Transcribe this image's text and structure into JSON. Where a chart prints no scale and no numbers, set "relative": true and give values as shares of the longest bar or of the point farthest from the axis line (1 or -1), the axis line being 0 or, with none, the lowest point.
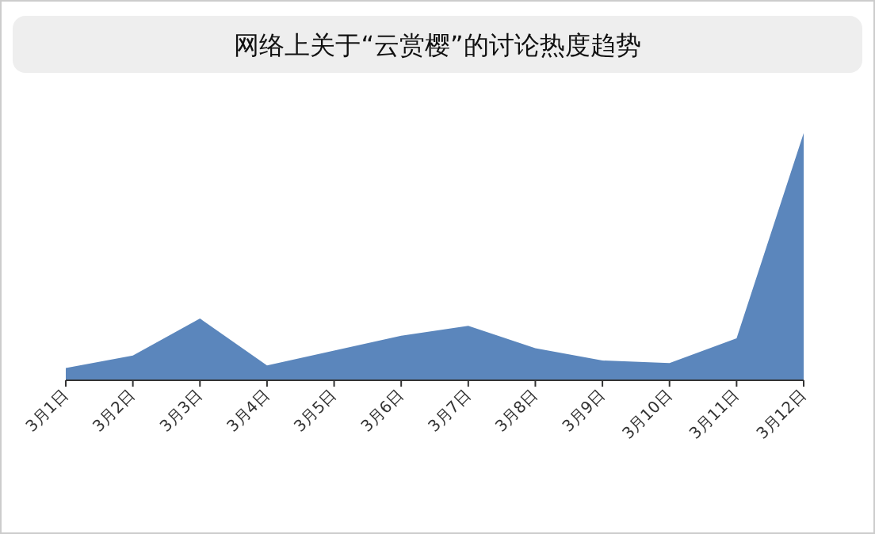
{
  "chart_data": {
    "type": "area",
    "title": "网络上关于“云赏樱”的讨论热度趋势",
    "relative": true,
    "categories": [
      "3月1日",
      "3月2日",
      "3月3日",
      "3月4日",
      "3月5日",
      "3月6日",
      "3月7日",
      "3月8日",
      "3月9日",
      "3月10日",
      "3月11日",
      "3月12日"
    ],
    "values": [
      0.05,
      0.1,
      0.25,
      0.06,
      0.12,
      0.18,
      0.22,
      0.13,
      0.08,
      0.07,
      0.17,
      1.0
    ],
    "color": "#5b86bc"
  }
}
